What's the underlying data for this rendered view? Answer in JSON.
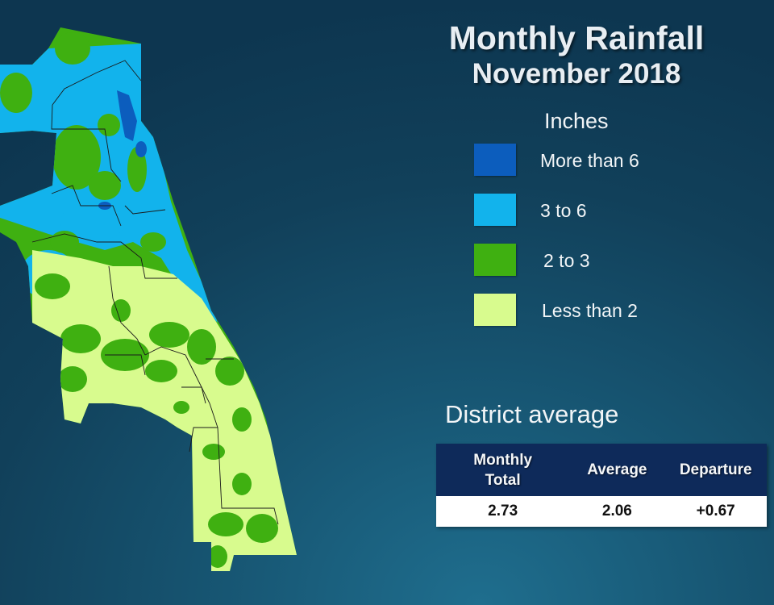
{
  "title": "Monthly Rainfall",
  "subtitle": "November 2018",
  "legend": {
    "units_label": "Inches",
    "items": [
      {
        "label": "More than 6",
        "color": "#0c5dbd"
      },
      {
        "label": "3 to 6",
        "color": "#12b3ec"
      },
      {
        "label": "2 to 3",
        "color": "#3fb011"
      },
      {
        "label": "Less than 2",
        "color": "#d8fb8e"
      }
    ]
  },
  "district_average": {
    "heading": "District average",
    "columns": [
      "Monthly Total",
      "Average",
      "Departure"
    ],
    "values": [
      "2.73",
      "2.06",
      "+0.67"
    ]
  },
  "map": {
    "colors": {
      "heavy": "#0c5dbd",
      "wet": "#12b3ec",
      "moderate": "#3fb011",
      "dry": "#d8fb8e",
      "boundary": "#1a1a1a"
    }
  }
}
